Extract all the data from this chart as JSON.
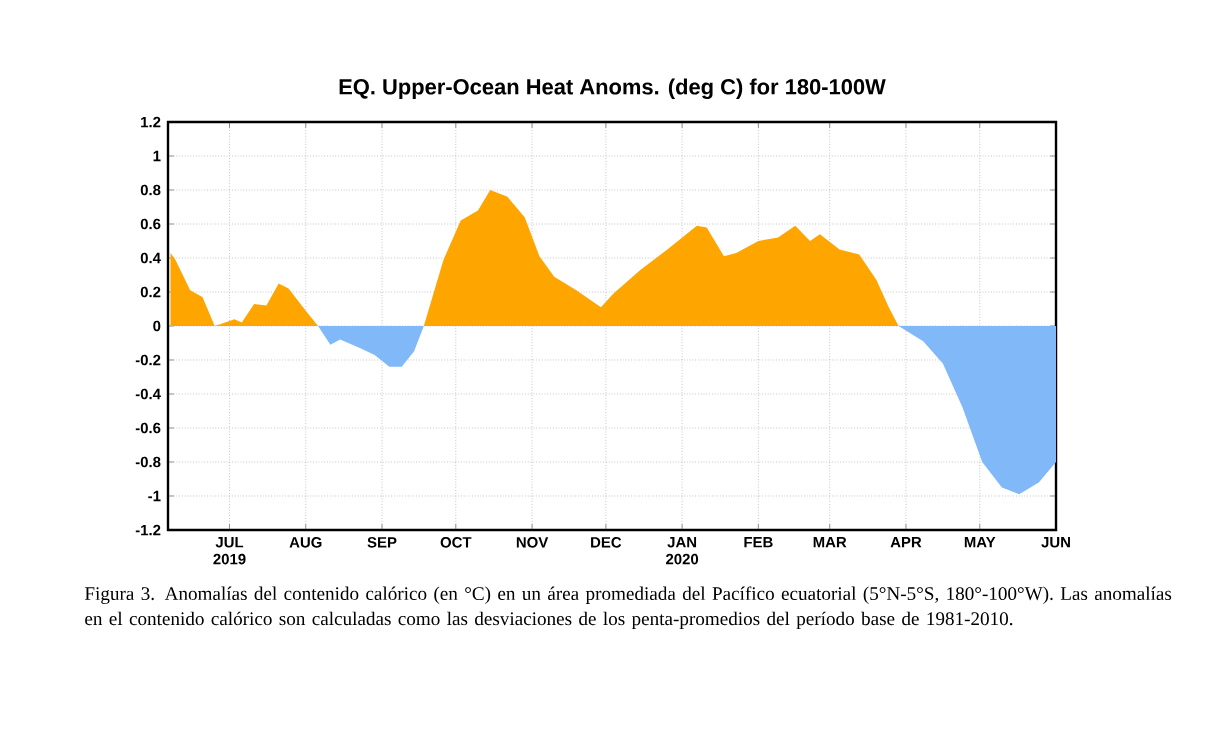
{
  "chart_data": {
    "type": "area",
    "title": "EQ. Upper-Ocean Heat Anoms. (deg C) for 180-100W",
    "x": [
      "2019-06-07",
      "2019-06-09",
      "2019-06-15",
      "2019-06-20",
      "2019-06-25",
      "2019-07-01",
      "2019-07-03",
      "2019-07-06",
      "2019-07-11",
      "2019-07-16",
      "2019-07-21",
      "2019-07-25",
      "2019-08-01",
      "2019-08-06",
      "2019-08-11",
      "2019-08-15",
      "2019-08-23",
      "2019-08-29",
      "2019-09-04",
      "2019-09-09",
      "2019-09-14",
      "2019-09-18",
      "2019-09-26",
      "2019-10-03",
      "2019-10-10",
      "2019-10-15",
      "2019-10-22",
      "2019-10-29",
      "2019-11-04",
      "2019-11-10",
      "2019-11-19",
      "2019-11-29",
      "2019-12-04",
      "2019-12-15",
      "2019-12-26",
      "2020-01-07",
      "2020-01-11",
      "2020-01-18",
      "2020-01-23",
      "2020-02-01",
      "2020-02-09",
      "2020-02-16",
      "2020-02-22",
      "2020-02-26",
      "2020-03-05",
      "2020-03-13",
      "2020-03-20",
      "2020-03-25",
      "2020-03-29",
      "2020-04-08",
      "2020-04-16",
      "2020-04-24",
      "2020-05-02",
      "2020-05-10",
      "2020-05-17",
      "2020-05-25",
      "2020-06-01"
    ],
    "series": [
      {
        "color": "#ffa500",
        "values": [
          0.43,
          0.39,
          0.21,
          0.17,
          0,
          0.03,
          0.04,
          0.02,
          0.13,
          0.12,
          0.25,
          0.22,
          0.09,
          0,
          null,
          null,
          null,
          null,
          null,
          null,
          null,
          0,
          0.39,
          0.62,
          0.68,
          0.8,
          0.76,
          0.64,
          0.41,
          0.29,
          0.21,
          0.11,
          0.19,
          0.33,
          0.45,
          0.59,
          0.58,
          0.41,
          0.43,
          0.5,
          0.52,
          0.59,
          0.5,
          0.54,
          0.45,
          0.42,
          0.27,
          0.11,
          0,
          null,
          null,
          null,
          null,
          null,
          null,
          null,
          null
        ]
      },
      {
        "color": "#80b8f8",
        "values": [
          null,
          null,
          null,
          null,
          null,
          null,
          null,
          null,
          null,
          null,
          null,
          null,
          null,
          0,
          -0.11,
          -0.08,
          -0.13,
          -0.17,
          -0.24,
          -0.24,
          -0.15,
          0,
          null,
          null,
          null,
          null,
          null,
          null,
          null,
          null,
          null,
          null,
          null,
          null,
          null,
          null,
          null,
          null,
          null,
          null,
          null,
          null,
          null,
          null,
          null,
          null,
          null,
          null,
          0,
          -0.09,
          -0.22,
          -0.48,
          -0.8,
          -0.95,
          -0.99,
          -0.92,
          -0.8
        ]
      }
    ],
    "xlim": [
      "2019-06-06",
      "2020-06-01"
    ],
    "xticks": [
      {
        "value": "2019-07-01",
        "label": "JUL 2019"
      },
      {
        "value": "2019-08-01",
        "label": "AUG"
      },
      {
        "value": "2019-09-01",
        "label": "SEP"
      },
      {
        "value": "2019-10-01",
        "label": "OCT"
      },
      {
        "value": "2019-11-01",
        "label": "NOV"
      },
      {
        "value": "2019-12-01",
        "label": "DEC"
      },
      {
        "value": "2020-01-01",
        "label": "JAN 2020"
      },
      {
        "value": "2020-02-01",
        "label": "FEB"
      },
      {
        "value": "2020-03-01",
        "label": "MAR"
      },
      {
        "value": "2020-04-01",
        "label": "APR"
      },
      {
        "value": "2020-05-01",
        "label": "MAY"
      },
      {
        "value": "2020-06-01",
        "label": "JUN"
      }
    ],
    "ylim": [
      -1.2,
      1.2
    ],
    "yticks": [
      -1.2,
      -1,
      -0.8,
      -0.6,
      -0.4,
      -0.2,
      0,
      0.2,
      0.4,
      0.6,
      0.8,
      1,
      1.2
    ],
    "grid": true,
    "annotations": [
      "Figura 3. Anomalías del contenido calórico (en °C) en un área promediada del Pacífico ecuatorial (5°N-5°S, 180°-100°W). Las anomalías en el contenido calórico son calculadas como las desviaciones de los penta-promedios del período base de 1981-2010."
    ]
  }
}
